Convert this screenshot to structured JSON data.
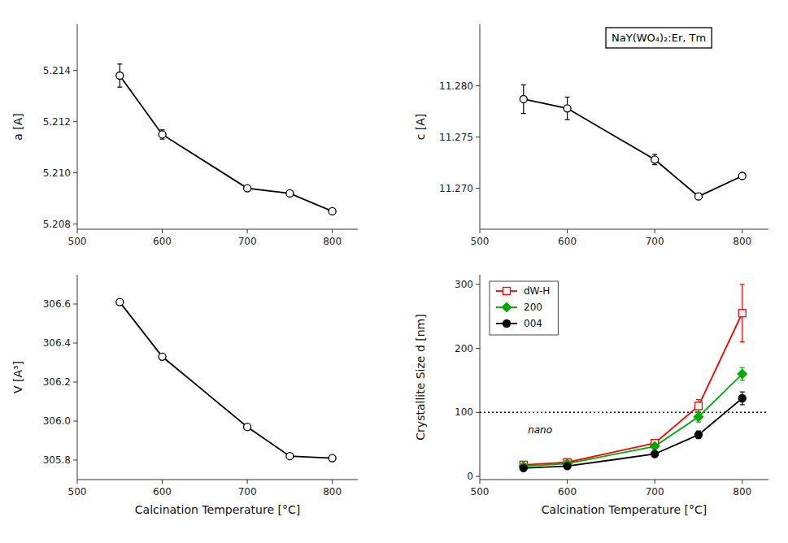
{
  "chart_data": [
    {
      "type": "line",
      "ylabel": "a [A]",
      "x": [
        550,
        600,
        700,
        750,
        800
      ],
      "xlim": [
        500,
        830
      ],
      "xticks": [
        500,
        600,
        700,
        800
      ],
      "ylim": [
        5.2078,
        5.2158
      ],
      "yticks": [
        5.208,
        {
          "value": 5.21,
          "label": "5.210"
        },
        5.212,
        5.214
      ],
      "series": [
        {
          "values": [
            5.2138,
            5.2115,
            5.2094,
            5.2092,
            5.2085
          ],
          "errors": [
            0.00045,
            0.00018,
            8e-05,
            8e-05,
            7e-05
          ],
          "color": "#000000",
          "marker": "circle-open"
        }
      ]
    },
    {
      "type": "line",
      "ylabel": "c [A]",
      "x": [
        550,
        600,
        700,
        750,
        800
      ],
      "xlim": [
        500,
        830
      ],
      "xticks": [
        500,
        600,
        700,
        800
      ],
      "ylim": [
        11.266,
        11.286
      ],
      "yticks": [
        {
          "value": 11.27,
          "label": "11.270"
        },
        11.275,
        {
          "value": 11.28,
          "label": "11.280"
        }
      ],
      "annotations": [
        {
          "text": "NaY(WO₄)₂:Er, Tm"
        }
      ],
      "series": [
        {
          "values": [
            11.2787,
            11.2778,
            11.2728,
            11.2692,
            11.2712
          ],
          "errors": [
            0.0014,
            0.0011,
            0.0005,
            0.0003,
            0.0002
          ],
          "color": "#000000",
          "marker": "circle-open"
        }
      ]
    },
    {
      "type": "line",
      "ylabel": "V [A³]",
      "xlabel": "Calcination Temperature [°C]",
      "x": [
        550,
        600,
        700,
        750,
        800
      ],
      "xlim": [
        500,
        830
      ],
      "xticks": [
        500,
        600,
        700,
        800
      ],
      "ylim": [
        305.7,
        306.75
      ],
      "yticks": [
        305.8,
        {
          "value": 306,
          "label": "306.0"
        },
        306.2,
        306.4,
        306.6
      ],
      "series": [
        {
          "values": [
            306.61,
            306.33,
            305.97,
            305.82,
            305.81
          ],
          "color": "#000000",
          "marker": "circle-open"
        }
      ]
    },
    {
      "type": "line",
      "ylabel": "Crystallite Size d [nm]",
      "xlabel": "Calcination Temperature [°C]",
      "x": [
        550,
        600,
        700,
        750,
        800
      ],
      "xlim": [
        500,
        830
      ],
      "xticks": [
        500,
        600,
        700,
        800
      ],
      "ylim": [
        -5,
        315
      ],
      "yticks": [
        0,
        100,
        200,
        300
      ],
      "legend": "upper left",
      "reference_line": {
        "y": 100,
        "line_style": "dotted"
      },
      "annotations": [
        {
          "text": "nano",
          "x": 555,
          "y": 68
        }
      ],
      "series": [
        {
          "name": "dW-H",
          "values": [
            18,
            22,
            52,
            110,
            255
          ],
          "errors": [
            2,
            2,
            5,
            10,
            45
          ],
          "color": "#ff0000",
          "marker": "square-open"
        },
        {
          "name": "200",
          "values": [
            16,
            20,
            47,
            93,
            160
          ],
          "errors": [
            2,
            2,
            4,
            8,
            10
          ],
          "color": "#00aa00",
          "marker": "diamond"
        },
        {
          "name": "004",
          "values": [
            13,
            16,
            35,
            65,
            122
          ],
          "errors": [
            1,
            2,
            3,
            6,
            10
          ],
          "color": "#000000",
          "marker": "circle"
        }
      ]
    }
  ]
}
